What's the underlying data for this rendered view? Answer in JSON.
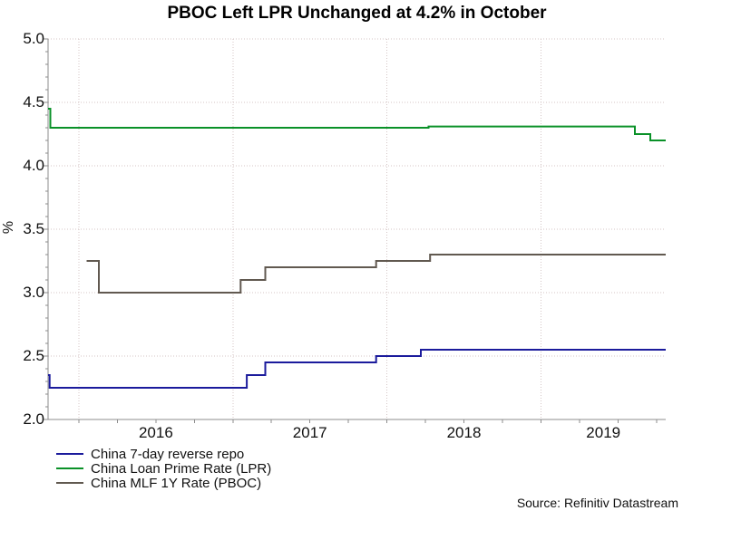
{
  "title": "PBOC Left LPR Unchanged at 4.2% in October",
  "source": "Source: Refinitiv Datastream",
  "ylabel": "%",
  "legend": {
    "items": [
      {
        "label": "China 7-day reverse repo",
        "color": "#1b1b9c"
      },
      {
        "label": "China Loan Prime Rate (LPR)",
        "color": "#0a9128"
      },
      {
        "label": "China MLF 1Y Rate (PBOC)",
        "color": "#615950"
      }
    ]
  },
  "axes": {
    "y": {
      "labels": [
        "5.0",
        "4.5",
        "4.0",
        "3.5",
        "3.0",
        "2.5",
        "2.0"
      ]
    },
    "x": {
      "labels": [
        "2016",
        "2017",
        "2018",
        "2019"
      ]
    }
  },
  "colors": {
    "axis": "#8c8c8c",
    "grid": "#d4c6c6",
    "text": "#111111",
    "title": "#000000"
  },
  "chart_data": {
    "type": "line",
    "title": "PBOC Left LPR Unchanged at 4.2% in October",
    "xlabel": "",
    "ylabel": "%",
    "x_range": [
      2015.8,
      2019.81
    ],
    "y_range": [
      2.0,
      5.0
    ],
    "y_major_tick": 0.5,
    "y_minor_tick": 0.1,
    "x_tick_step_years": 0.25,
    "x_gridline_years": [
      2016,
      2017,
      2018,
      2019
    ],
    "grid_style": "dotted",
    "legend_position": "bottom-left",
    "series": [
      {
        "name": "China 7-day reverse repo",
        "color": "#1b1b9c",
        "interpolation": "step-after",
        "points": [
          [
            2015.8,
            2.35
          ],
          [
            2015.81,
            2.25
          ],
          [
            2017.09,
            2.35
          ],
          [
            2017.21,
            2.45
          ],
          [
            2017.93,
            2.5
          ],
          [
            2018.22,
            2.55
          ],
          [
            2019.81,
            2.55
          ]
        ]
      },
      {
        "name": "China Loan Prime Rate (LPR)",
        "color": "#0a9128",
        "interpolation": "step-after",
        "points": [
          [
            2015.8,
            4.45
          ],
          [
            2015.815,
            4.3
          ],
          [
            2018.27,
            4.31
          ],
          [
            2019.61,
            4.25
          ],
          [
            2019.71,
            4.2
          ],
          [
            2019.81,
            4.2
          ]
        ]
      },
      {
        "name": "China MLF 1Y Rate (PBOC)",
        "color": "#615950",
        "interpolation": "step-after",
        "points": [
          [
            2016.05,
            3.25
          ],
          [
            2016.13,
            3.0
          ],
          [
            2017.05,
            3.1
          ],
          [
            2017.21,
            3.2
          ],
          [
            2017.93,
            3.25
          ],
          [
            2018.28,
            3.3
          ],
          [
            2019.81,
            3.3
          ]
        ]
      }
    ]
  }
}
